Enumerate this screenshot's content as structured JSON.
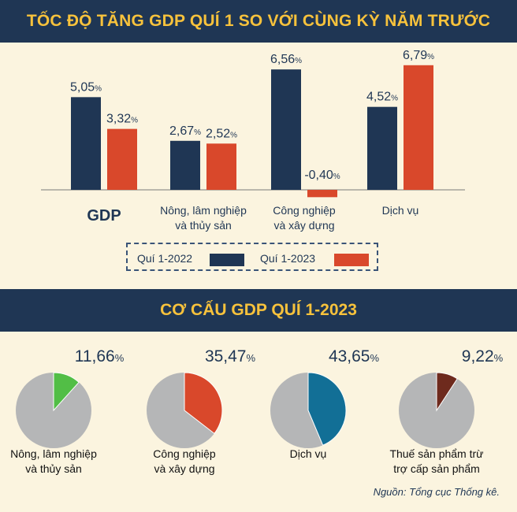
{
  "titles": {
    "bar_chart": "TỐC ĐỘ TĂNG GDP QUÍ 1 SO VỚI CÙNG KỲ NĂM TRƯỚC",
    "pie_charts": "CƠ CẤU GDP QUÍ 1-2023"
  },
  "colors": {
    "navy": "#1f3654",
    "orange": "#d9482b",
    "title_yellow": "#f7c23c",
    "pie_grey": "#b5b6b7",
    "pie_green": "#52be46",
    "pie_blue": "#126f96",
    "pie_brown": "#6e2a1d"
  },
  "legend": {
    "series1": "Quí 1-2022",
    "series2": "Quí 1-2023"
  },
  "source": "Nguồn: Tổng cục Thống kê.",
  "chart_data": [
    {
      "type": "bar",
      "title": "TỐC ĐỘ TĂNG GDP QUÍ 1 SO VỚI CÙNG KỲ NĂM TRƯỚC",
      "categories": [
        "GDP",
        "Nông, lâm nghiệp và thủy sản",
        "Công nghiệp và xây dựng",
        "Dịch vụ"
      ],
      "category_lines": [
        [
          "GDP"
        ],
        [
          "Nông, lâm nghiệp",
          "và thủy sản"
        ],
        [
          "Công nghiệp",
          "và xây dựng"
        ],
        [
          "Dịch vụ"
        ]
      ],
      "series": [
        {
          "name": "Quí 1-2022",
          "values": [
            5.05,
            2.67,
            6.56,
            4.52
          ],
          "labels": [
            "5,05",
            "2,67",
            "6,56",
            "4,52"
          ]
        },
        {
          "name": "Quí 1-2023",
          "values": [
            3.32,
            2.52,
            -0.4,
            6.79
          ],
          "labels": [
            "3,32",
            "2,52",
            "-0,40",
            "6,79"
          ]
        }
      ],
      "unit": "%"
    },
    {
      "type": "pie",
      "title": "CƠ CẤU GDP QUÍ 1-2023",
      "slices": [
        {
          "label_lines": [
            "Nông, lâm nghiệp",
            "và thủy sản"
          ],
          "value": 11.66,
          "value_label": "11,66"
        },
        {
          "label_lines": [
            "Công nghiệp",
            "và xây dựng"
          ],
          "value": 35.47,
          "value_label": "35,47"
        },
        {
          "label_lines": [
            "Dịch vụ"
          ],
          "value": 43.65,
          "value_label": "43,65"
        },
        {
          "label_lines": [
            "Thuế sản phẩm trừ",
            "trợ cấp sản phẩm"
          ],
          "value": 9.22,
          "value_label": "9,22"
        }
      ],
      "unit": "%"
    }
  ]
}
